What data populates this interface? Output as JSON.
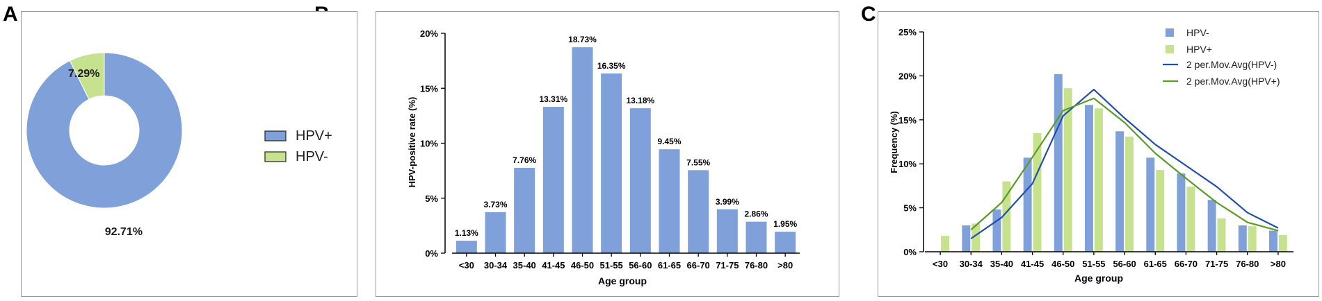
{
  "panels": {
    "a": "A",
    "b": "B",
    "c": "C"
  },
  "chart_data": [
    {
      "type": "pie",
      "variant": "donut",
      "slices": [
        {
          "name": "HPV+",
          "value": 92.71,
          "label": "92.71%",
          "color": "#7fa0d8"
        },
        {
          "name": "HPV-",
          "value": 7.29,
          "label": "7.29%",
          "color": "#c6e28f"
        }
      ],
      "legend": [
        "HPV+",
        "HPV-"
      ],
      "legend_position": "right"
    },
    {
      "type": "bar",
      "categories": [
        "<30",
        "30-34",
        "35-40",
        "41-45",
        "46-50",
        "51-55",
        "56-60",
        "61-65",
        "66-70",
        "71-75",
        "76-80",
        ">80"
      ],
      "values": [
        1.13,
        3.73,
        7.76,
        13.31,
        18.73,
        16.35,
        13.18,
        9.45,
        7.55,
        3.99,
        2.86,
        1.95
      ],
      "data_labels": [
        "1.13%",
        "3.73%",
        "7.76%",
        "13.31%",
        "18.73%",
        "16.35%",
        "13.18%",
        "9.45%",
        "7.55%",
        "3.99%",
        "2.86%",
        "1.95%"
      ],
      "xlabel": "Age group",
      "ylabel": "HPV-positive rate (%)",
      "ylim": [
        0,
        20
      ],
      "yticks": [
        "0%",
        "5%",
        "10%",
        "15%",
        "20%"
      ],
      "color": "#7fa0d8"
    },
    {
      "type": "bar",
      "categories": [
        "<30",
        "30-34",
        "35-40",
        "41-45",
        "46-50",
        "51-55",
        "56-60",
        "61-65",
        "66-70",
        "71-75",
        "76-80",
        ">80"
      ],
      "series": [
        {
          "name": "HPV-",
          "kind": "bar",
          "color": "#7fa0d8",
          "values": [
            0.0,
            3.0,
            4.8,
            10.7,
            20.2,
            16.7,
            13.7,
            10.7,
            8.9,
            5.9,
            3.0,
            2.4
          ]
        },
        {
          "name": "HPV+",
          "kind": "bar",
          "color": "#c6e28f",
          "values": [
            1.8,
            3.2,
            8.0,
            13.5,
            18.6,
            16.3,
            13.1,
            9.3,
            7.4,
            3.8,
            2.9,
            1.9
          ]
        },
        {
          "name": "2 per.Mov.Avg(HPV-)",
          "kind": "line",
          "color": "#1f4fa8"
        },
        {
          "name": "2 per.Mov.Avg(HPV+)",
          "kind": "line",
          "color": "#5b9a23"
        }
      ],
      "xlabel": "Age group",
      "ylabel": "Frequency (%)",
      "ylim": [
        0,
        25
      ],
      "yticks": [
        "0%",
        "5%",
        "10%",
        "15%",
        "20%",
        "25%"
      ],
      "legend_position": "top-right"
    }
  ]
}
